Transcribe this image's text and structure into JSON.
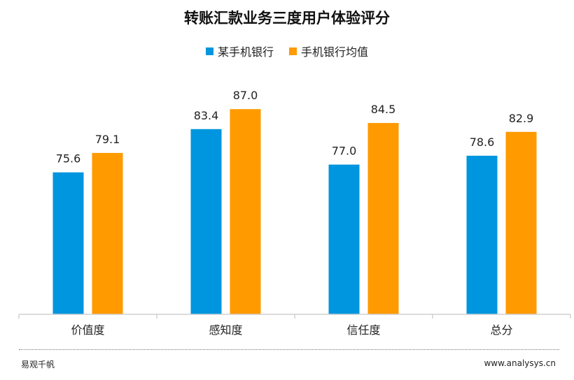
{
  "chart_data": {
    "type": "bar",
    "title": "转账汇款业务三度用户体验评分",
    "categories": [
      "价值度",
      "感知度",
      "信任度",
      "总分"
    ],
    "series": [
      {
        "name": "某手机银行",
        "values": [
          75.6,
          83.4,
          77.0,
          78.6
        ],
        "color": "#0096DF"
      },
      {
        "name": "手机银行均值",
        "values": [
          79.1,
          87.0,
          84.5,
          82.9
        ],
        "color": "#FF9A00"
      }
    ],
    "ylim": [
      50,
      100
    ],
    "grid": false,
    "legend": "top",
    "xlabel": "",
    "ylabel": ""
  },
  "footer": {
    "left": "易观千帆",
    "right": "www.analysys.cn"
  }
}
